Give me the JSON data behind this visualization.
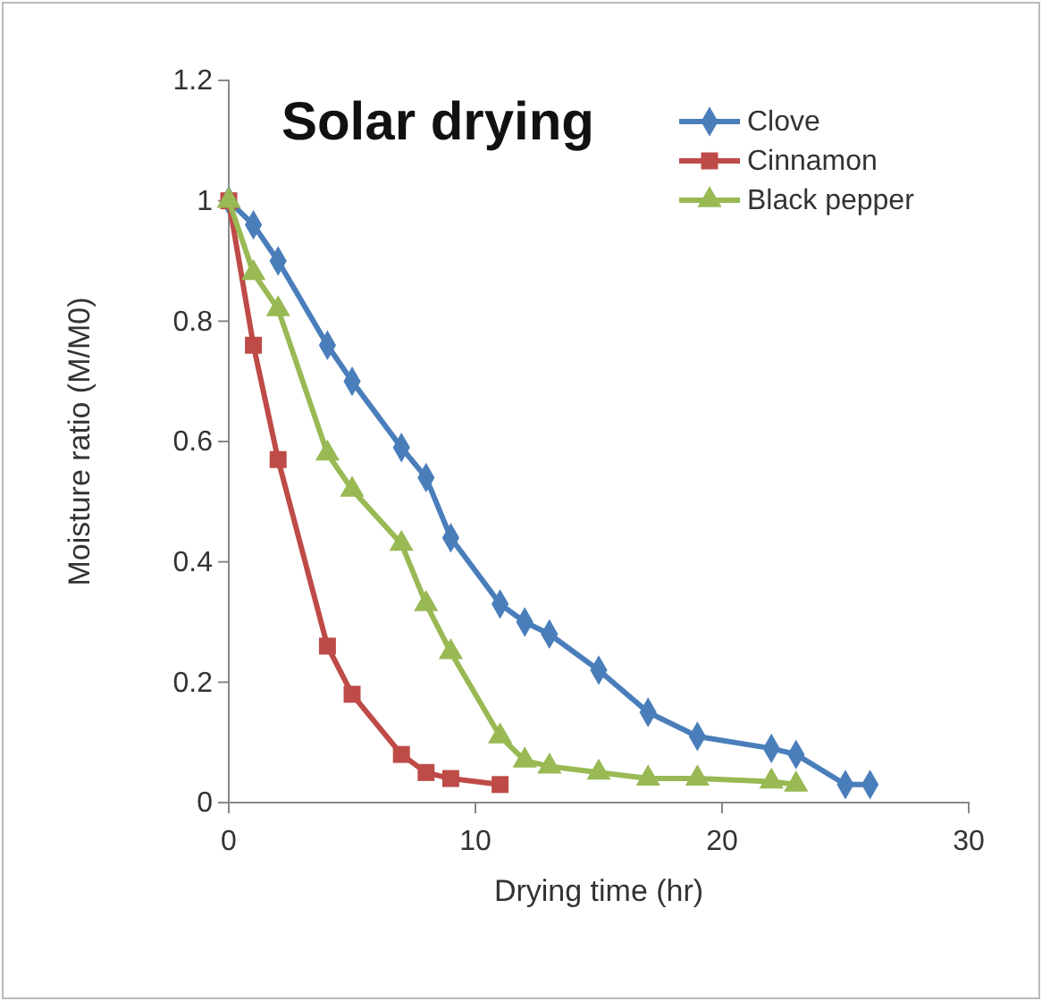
{
  "chart_data": {
    "type": "line",
    "title": "Solar drying",
    "xlabel": "Drying time (hr)",
    "ylabel": "Moisture ratio (M/M0)",
    "xlim": [
      0,
      30
    ],
    "xticks": [
      0,
      10,
      20,
      30
    ],
    "ylim": [
      0,
      1.2
    ],
    "yticks": [
      0,
      0.2,
      0.4,
      0.6,
      0.8,
      1,
      1.2
    ],
    "grid": false,
    "legend": "top right",
    "series": [
      {
        "name": "Clove",
        "color": "#4a7ebb",
        "marker": "diamond",
        "x": [
          0,
          1,
          2,
          4,
          5,
          7,
          8,
          9,
          11,
          12,
          13,
          15,
          17,
          19,
          22,
          23,
          25,
          26
        ],
        "values": [
          1,
          0.96,
          0.9,
          0.76,
          0.7,
          0.59,
          0.54,
          0.44,
          0.33,
          0.3,
          0.28,
          0.22,
          0.15,
          0.11,
          0.09,
          0.08,
          0.03,
          0.03
        ]
      },
      {
        "name": "Cinnamon",
        "color": "#be4b48",
        "marker": "square",
        "x": [
          0,
          1,
          2,
          4,
          5,
          7,
          8,
          9,
          11
        ],
        "values": [
          1,
          0.76,
          0.57,
          0.26,
          0.18,
          0.08,
          0.05,
          0.04,
          0.03
        ]
      },
      {
        "name": "Black pepper",
        "color": "#98b954",
        "marker": "triangle",
        "x": [
          0,
          1,
          2,
          4,
          5,
          7,
          8,
          9,
          11,
          12,
          13,
          15,
          17,
          19,
          22,
          23
        ],
        "values": [
          1,
          0.88,
          0.82,
          0.58,
          0.52,
          0.43,
          0.33,
          0.25,
          0.11,
          0.07,
          0.06,
          0.05,
          0.04,
          0.04,
          0.035,
          0.03
        ]
      }
    ]
  }
}
